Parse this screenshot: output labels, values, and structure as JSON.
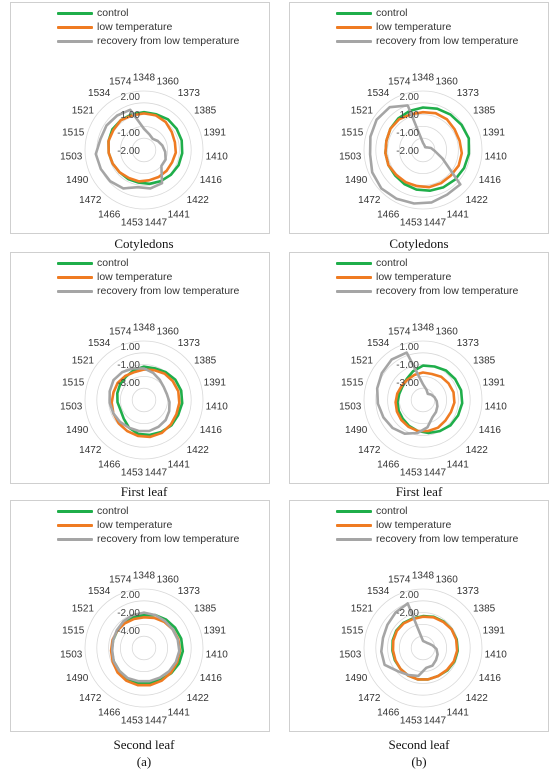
{
  "legend": [
    {
      "label": "control",
      "color": "#1fae4a"
    },
    {
      "label": "low temperature",
      "color": "#ef7b22"
    },
    {
      "label": "recovery from low temperature",
      "color": "#a5a5a5"
    }
  ],
  "panel_labels": {
    "a": "(a)",
    "b": "(b)"
  },
  "captions": [
    "Cotyledons",
    "Cotyledons",
    "First leaf",
    "First leaf",
    "Second leaf",
    "Second leaf"
  ],
  "chart_data": [
    {
      "type": "radar",
      "title": "Cotyledons",
      "categories": [
        "1348",
        "1360",
        "1373",
        "1385",
        "1391",
        "1410",
        "1416",
        "1422",
        "1441",
        "1447",
        "1453",
        "1466",
        "1472",
        "1490",
        "1503",
        "1515",
        "1521",
        "1534",
        "1574"
      ],
      "tick_labels": [
        "2.00",
        "1.00",
        "-1.00",
        "-2.00"
      ],
      "rlim": [
        -3,
        2
      ],
      "series": [
        {
          "name": "control",
          "values": [
            0.2,
            0.2,
            0.3,
            0.3,
            0.3,
            0.25,
            0.2,
            0.1,
            0.0,
            -0.1,
            -0.2,
            -0.2,
            -0.2,
            -0.1,
            0.0,
            0.1,
            0.2,
            0.2,
            0.2
          ]
        },
        {
          "name": "low temperature",
          "values": [
            0.1,
            0.1,
            0.0,
            -0.2,
            -0.3,
            -0.3,
            -0.4,
            -0.4,
            -0.4,
            -0.4,
            -0.3,
            -0.3,
            -0.2,
            -0.1,
            0.0,
            0.1,
            0.1,
            0.2,
            0.1
          ]
        },
        {
          "name": "recovery from low temperature",
          "values": [
            -1.2,
            -1.6,
            -1.8,
            -1.6,
            -1.4,
            -1.2,
            -1.0,
            -1.0,
            0.2,
            0.3,
            0.2,
            0.7,
            0.9,
            1.0,
            1.1,
            0.8,
            0.8,
            0.7,
            0.6
          ]
        }
      ]
    },
    {
      "type": "radar",
      "title": "Cotyledons",
      "categories": [
        "1348",
        "1360",
        "1373",
        "1385",
        "1391",
        "1410",
        "1416",
        "1422",
        "1441",
        "1447",
        "1453",
        "1466",
        "1472",
        "1490",
        "1503",
        "1515",
        "1521",
        "1534",
        "1574"
      ],
      "tick_labels": [
        "2.00",
        "1.00",
        "-1.00",
        "-2.00"
      ],
      "rlim": [
        -3,
        2
      ],
      "series": [
        {
          "name": "control",
          "values": [
            0.6,
            0.7,
            0.8,
            0.9,
            1.0,
            0.9,
            0.8,
            0.7,
            0.6,
            0.5,
            0.4,
            0.3,
            0.2,
            0.2,
            0.2,
            0.2,
            0.3,
            0.4,
            0.5
          ]
        },
        {
          "name": "low temperature",
          "values": [
            0.2,
            0.3,
            0.3,
            0.2,
            0.2,
            0.3,
            0.3,
            0.2,
            0.2,
            0.2,
            0.1,
            0.1,
            0.1,
            0.2,
            0.2,
            0.2,
            0.3,
            0.3,
            0.2
          ]
        },
        {
          "name": "recovery from low temperature",
          "values": [
            -2.4,
            -2.6,
            -2.7,
            -2.6,
            -2.3,
            -2.0,
            -1.2,
            1.3,
            1.3,
            1.5,
            1.6,
            1.7,
            1.8,
            1.7,
            1.5,
            1.6,
            1.7,
            1.6,
            1.0
          ]
        }
      ]
    },
    {
      "type": "radar",
      "title": "First leaf",
      "categories": [
        "1348",
        "1360",
        "1373",
        "1385",
        "1391",
        "1410",
        "1416",
        "1422",
        "1441",
        "1447",
        "1453",
        "1466",
        "1472",
        "1490",
        "1503",
        "1515",
        "1521",
        "1534",
        "1574"
      ],
      "tick_labels": [
        "1.00",
        "-1.00",
        "-3.00"
      ],
      "rlim": [
        -4,
        2
      ],
      "series": [
        {
          "name": "control",
          "values": [
            -0.6,
            -0.6,
            -0.4,
            -0.2,
            -0.1,
            -0.1,
            -0.2,
            -0.2,
            -0.3,
            -0.4,
            -0.5,
            -0.8,
            -1.2,
            -1.4,
            -1.3,
            -1.2,
            -1.1,
            -1.0,
            -0.8
          ]
        },
        {
          "name": "low temperature",
          "values": [
            -0.9,
            -0.8,
            -0.6,
            -0.5,
            -0.4,
            -0.4,
            -0.4,
            -0.3,
            -0.2,
            -0.2,
            -0.3,
            -0.4,
            -0.5,
            -0.6,
            -0.7,
            -0.8,
            -0.8,
            -0.9,
            -1.0
          ]
        },
        {
          "name": "recovery from low temperature",
          "values": [
            -0.8,
            -1.1,
            -1.4,
            -1.6,
            -1.6,
            -1.4,
            -1.2,
            -1.0,
            -0.9,
            -0.8,
            -0.8,
            -0.8,
            -0.7,
            -0.6,
            -0.5,
            -0.4,
            -0.3,
            -0.4,
            -0.6
          ]
        }
      ]
    },
    {
      "type": "radar",
      "title": "First leaf",
      "categories": [
        "1348",
        "1360",
        "1373",
        "1385",
        "1391",
        "1410",
        "1416",
        "1422",
        "1441",
        "1447",
        "1453",
        "1466",
        "1472",
        "1490",
        "1503",
        "1515",
        "1521",
        "1534",
        "1574"
      ],
      "tick_labels": [
        "1.00",
        "-1.00",
        "-3.00"
      ],
      "rlim": [
        -4,
        2
      ],
      "series": [
        {
          "name": "control",
          "values": [
            -0.5,
            -0.4,
            -0.2,
            -0.1,
            0.0,
            0.0,
            -0.1,
            -0.2,
            -0.4,
            -0.6,
            -0.8,
            -1.0,
            -1.2,
            -1.3,
            -1.4,
            -1.5,
            -1.5,
            -1.3,
            -0.9
          ]
        },
        {
          "name": "low temperature",
          "values": [
            -1.2,
            -1.2,
            -1.0,
            -0.9,
            -0.8,
            -0.8,
            -0.9,
            -0.9,
            -0.8,
            -0.8,
            -0.8,
            -0.9,
            -1.0,
            -1.1,
            -1.2,
            -1.3,
            -1.4,
            -1.4,
            -1.3
          ]
        },
        {
          "name": "recovery from low temperature",
          "values": [
            -2.4,
            -2.9,
            -3.2,
            -3.0,
            -2.8,
            -2.6,
            -2.4,
            -2.2,
            -2.0,
            -1.2,
            -0.6,
            -0.1,
            0.2,
            0.4,
            0.6,
            0.8,
            1.0,
            1.2,
            1.1
          ]
        }
      ]
    },
    {
      "type": "radar",
      "title": "Second leaf",
      "categories": [
        "1348",
        "1360",
        "1373",
        "1385",
        "1391",
        "1410",
        "1416",
        "1422",
        "1441",
        "1447",
        "1453",
        "1466",
        "1472",
        "1490",
        "1503",
        "1515",
        "1521",
        "1534",
        "1574"
      ],
      "tick_labels": [
        "2.00",
        "-2.00",
        "-4.00"
      ],
      "rlim": [
        -6,
        4
      ],
      "series": [
        {
          "name": "control",
          "values": [
            -0.4,
            -0.1,
            0.1,
            0.3,
            0.5,
            0.6,
            0.5,
            0.3,
            0.1,
            0.0,
            0.0,
            -0.1,
            -0.3,
            -0.4,
            -0.5,
            -0.6,
            -0.6,
            -0.5,
            -0.5
          ]
        },
        {
          "name": "low temperature",
          "values": [
            -0.8,
            -0.6,
            -0.4,
            -0.2,
            0.0,
            0.1,
            0.1,
            0.2,
            0.3,
            0.4,
            0.4,
            0.3,
            0.1,
            -0.2,
            -0.4,
            -0.5,
            -0.6,
            -0.7,
            -0.8
          ]
        },
        {
          "name": "recovery from low temperature",
          "values": [
            0.0,
            -0.1,
            -0.2,
            -0.2,
            -0.1,
            0.0,
            -0.1,
            -0.2,
            -0.3,
            -0.3,
            -0.3,
            -0.2,
            -0.3,
            -0.4,
            -0.6,
            -0.6,
            -0.5,
            -0.3,
            -0.1
          ]
        }
      ]
    },
    {
      "type": "radar",
      "title": "Second leaf",
      "categories": [
        "1348",
        "1360",
        "1373",
        "1385",
        "1391",
        "1410",
        "1416",
        "1422",
        "1441",
        "1447",
        "1453",
        "1466",
        "1472",
        "1490",
        "1503",
        "1515",
        "1521",
        "1534",
        "1574"
      ],
      "tick_labels": [
        "2.00",
        "-2.00"
      ],
      "rlim": [
        -6,
        4
      ],
      "series": [
        {
          "name": "control",
          "values": [
            -0.6,
            -0.4,
            -0.3,
            -0.2,
            -0.1,
            -0.1,
            -0.2,
            -0.4,
            -0.6,
            -0.6,
            -0.6,
            -0.7,
            -0.8,
            -0.8,
            -0.8,
            -0.7,
            -0.6,
            -0.6,
            -0.7
          ]
        },
        {
          "name": "low temperature",
          "values": [
            -0.7,
            -0.5,
            -0.4,
            -0.2,
            -0.2,
            -0.2,
            -0.3,
            -0.5,
            -0.6,
            -0.6,
            -0.6,
            -0.7,
            -0.8,
            -0.9,
            -0.9,
            -0.8,
            -0.7,
            -0.7,
            -0.8
          ]
        },
        {
          "name": "recovery from low temperature",
          "values": [
            -4.8,
            -4.9,
            -4.9,
            -4.7,
            -4.3,
            -3.7,
            -3.3,
            -3.0,
            -2.6,
            -2.6,
            -1.2,
            -0.8,
            -0.2,
            1.1,
            1.1,
            1.0,
            1.2,
            1.6,
            2.0
          ]
        }
      ]
    }
  ]
}
